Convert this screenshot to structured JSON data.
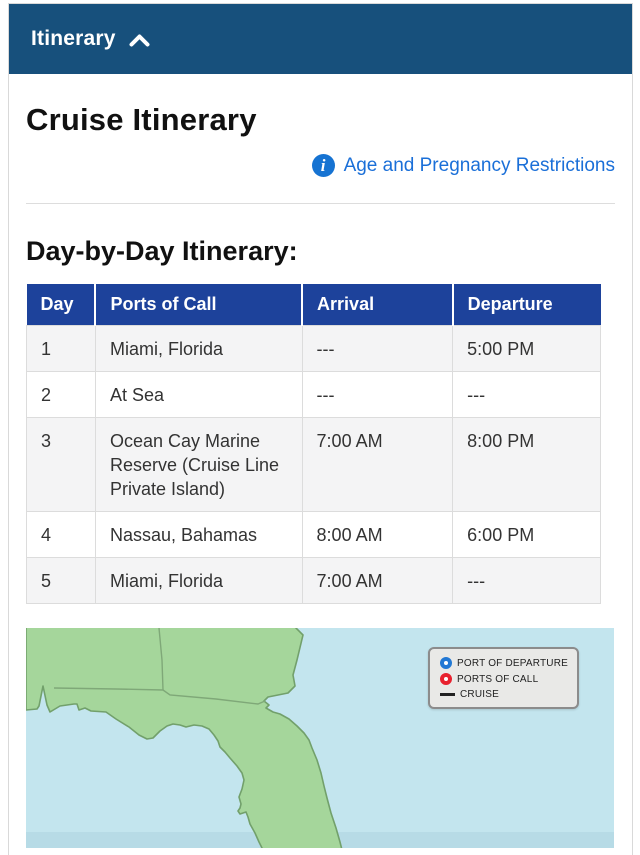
{
  "accordion": {
    "title": "Itinerary",
    "chevron_icon": "chevron-up-icon"
  },
  "page": {
    "title": "Cruise Itinerary"
  },
  "restrictions_link": {
    "label": "Age and Pregnancy Restrictions",
    "icon": "info-icon"
  },
  "itinerary": {
    "heading": "Day-by-Day Itinerary:",
    "table": {
      "columns": [
        "Day",
        "Ports of Call",
        "Arrival",
        "Departure"
      ],
      "rows": [
        {
          "day": "1",
          "port": "Miami, Florida",
          "arrival": "---",
          "departure": "5:00 PM"
        },
        {
          "day": "2",
          "port": "At Sea",
          "arrival": "---",
          "departure": "---"
        },
        {
          "day": "3",
          "port": "Ocean Cay Marine Reserve (Cruise Line Private Island)",
          "arrival": "7:00 AM",
          "departure": "8:00 PM"
        },
        {
          "day": "4",
          "port": "Nassau, Bahamas",
          "arrival": "8:00 AM",
          "departure": "6:00 PM"
        },
        {
          "day": "5",
          "port": "Miami, Florida",
          "arrival": "7:00 AM",
          "departure": "---"
        }
      ]
    }
  },
  "map": {
    "legend": [
      {
        "icon": "port-of-departure-marker",
        "label": "PORT OF DEPARTURE",
        "color": "#2178d4"
      },
      {
        "icon": "ports-of-call-marker",
        "label": "PORTS OF CALL",
        "color": "#e8212e"
      },
      {
        "icon": "cruise-route-line",
        "label": "CRUISE",
        "color": "#222222"
      }
    ]
  },
  "colors": {
    "accordion_bar": "#17507c",
    "table_header": "#1d429b",
    "link_blue": "#1a6fd8",
    "map_water": "#c3e5ee",
    "map_land": "#a5d69b",
    "zebra_row": "#f4f4f5"
  }
}
